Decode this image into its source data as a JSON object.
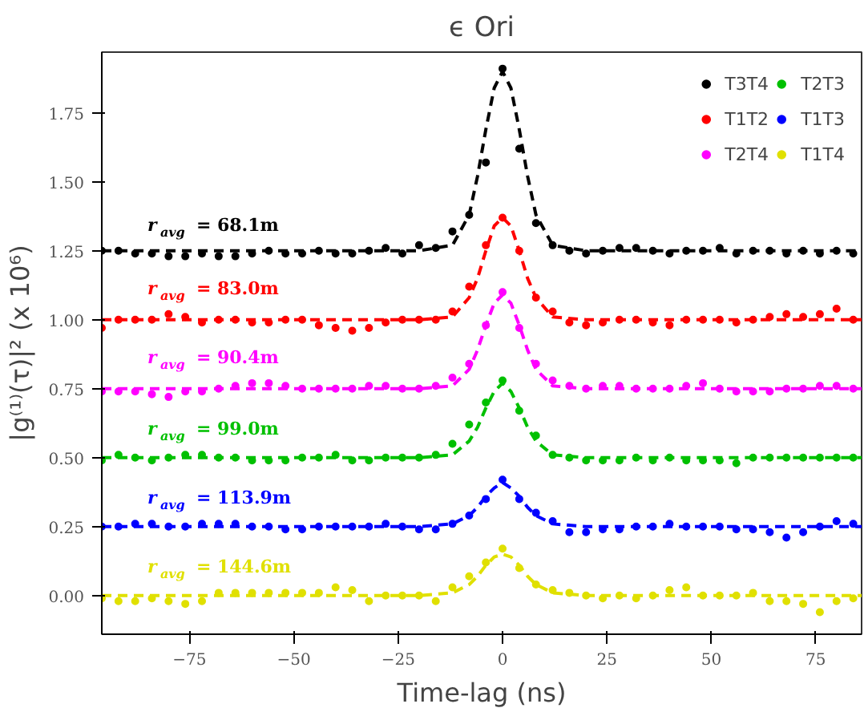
{
  "chart_data": {
    "type": "scatter",
    "title": "ϵ Ori",
    "xlabel": "Time-lag (ns)",
    "ylabel": "|g⁽¹⁾(τ)|² (x 10⁶)",
    "x": [
      -96,
      -92,
      -88,
      -84,
      -80,
      -76,
      -72,
      -68,
      -64,
      -60,
      -56,
      -52,
      -48,
      -44,
      -40,
      -36,
      -32,
      -28,
      -24,
      -20,
      -16,
      -12,
      -8,
      -4,
      0,
      4,
      8,
      12,
      16,
      20,
      24,
      28,
      32,
      36,
      40,
      44,
      48,
      52,
      56,
      60,
      64,
      68,
      72,
      76,
      80,
      84
    ],
    "series": [
      {
        "name": "T3T4",
        "color": "#000000",
        "values": [
          1.25,
          1.25,
          1.24,
          1.24,
          1.23,
          1.23,
          1.24,
          1.23,
          1.23,
          1.24,
          1.25,
          1.24,
          1.24,
          1.25,
          1.24,
          1.24,
          1.25,
          1.26,
          1.24,
          1.27,
          1.26,
          1.32,
          1.38,
          1.57,
          1.91,
          1.62,
          1.35,
          1.27,
          1.25,
          1.24,
          1.25,
          1.26,
          1.26,
          1.25,
          1.24,
          1.25,
          1.25,
          1.26,
          1.24,
          1.25,
          1.25,
          1.24,
          1.25,
          1.24,
          1.25,
          1.24
        ]
      },
      {
        "type": "line",
        "marker": "none",
        "color": "#000000",
        "line_style": "dashed",
        "x": [
          -96,
          -20,
          -12,
          -8,
          -6,
          -4,
          -2,
          0,
          2,
          4,
          6,
          8,
          12,
          20,
          86
        ],
        "values": [
          1.25,
          1.25,
          1.27,
          1.38,
          1.52,
          1.69,
          1.84,
          1.9,
          1.84,
          1.69,
          1.52,
          1.38,
          1.27,
          1.25,
          1.25
        ]
      },
      {
        "name": "T1T2",
        "color": "#ff0000",
        "values": [
          0.97,
          1.0,
          1.0,
          1.0,
          1.02,
          1.01,
          0.99,
          1.0,
          1.0,
          0.99,
          0.99,
          1.0,
          1.0,
          0.98,
          0.97,
          0.96,
          0.97,
          0.99,
          1.0,
          1.0,
          1.0,
          1.03,
          1.12,
          1.27,
          1.37,
          1.25,
          1.08,
          1.03,
          0.99,
          0.98,
          0.99,
          1.0,
          1.0,
          0.99,
          0.98,
          1.0,
          1.0,
          1.0,
          0.99,
          1.0,
          1.01,
          1.02,
          1.01,
          1.02,
          1.04,
          1.0
        ]
      },
      {
        "type": "line",
        "marker": "none",
        "color": "#ff0000",
        "line_style": "dashed",
        "x": [
          -96,
          -20,
          -12,
          -8,
          -6,
          -4,
          -2,
          0,
          2,
          4,
          6,
          8,
          12,
          20,
          86
        ],
        "values": [
          1.0,
          1.0,
          1.01,
          1.08,
          1.15,
          1.25,
          1.34,
          1.37,
          1.34,
          1.25,
          1.15,
          1.08,
          1.01,
          1.0,
          1.0
        ]
      },
      {
        "name": "T2T4",
        "color": "#ff00ff",
        "values": [
          0.74,
          0.74,
          0.74,
          0.73,
          0.72,
          0.74,
          0.74,
          0.75,
          0.76,
          0.77,
          0.77,
          0.76,
          0.75,
          0.75,
          0.75,
          0.75,
          0.76,
          0.76,
          0.75,
          0.75,
          0.76,
          0.79,
          0.84,
          0.98,
          1.1,
          0.97,
          0.84,
          0.78,
          0.76,
          0.75,
          0.76,
          0.76,
          0.75,
          0.75,
          0.75,
          0.76,
          0.77,
          0.75,
          0.74,
          0.74,
          0.74,
          0.75,
          0.75,
          0.76,
          0.76,
          0.75
        ]
      },
      {
        "type": "line",
        "marker": "none",
        "color": "#ff00ff",
        "line_style": "dashed",
        "x": [
          -96,
          -20,
          -12,
          -8,
          -6,
          -4,
          -2,
          0,
          2,
          4,
          6,
          8,
          12,
          20,
          86
        ],
        "values": [
          0.75,
          0.75,
          0.76,
          0.82,
          0.89,
          0.98,
          1.06,
          1.09,
          1.06,
          0.98,
          0.89,
          0.82,
          0.76,
          0.75,
          0.75
        ]
      },
      {
        "name": "T2T3",
        "color": "#00c000",
        "values": [
          0.49,
          0.51,
          0.5,
          0.49,
          0.5,
          0.51,
          0.51,
          0.5,
          0.5,
          0.49,
          0.49,
          0.49,
          0.5,
          0.5,
          0.51,
          0.49,
          0.49,
          0.5,
          0.5,
          0.5,
          0.51,
          0.55,
          0.62,
          0.7,
          0.78,
          0.67,
          0.58,
          0.51,
          0.5,
          0.49,
          0.49,
          0.49,
          0.5,
          0.49,
          0.5,
          0.49,
          0.49,
          0.49,
          0.48,
          0.5,
          0.5,
          0.5,
          0.5,
          0.5,
          0.5,
          0.5
        ]
      },
      {
        "type": "line",
        "marker": "none",
        "color": "#00c000",
        "line_style": "dashed",
        "x": [
          -96,
          -20,
          -12,
          -8,
          -6,
          -4,
          -2,
          0,
          2,
          4,
          6,
          8,
          12,
          20,
          86
        ],
        "values": [
          0.5,
          0.5,
          0.51,
          0.56,
          0.61,
          0.68,
          0.74,
          0.77,
          0.74,
          0.68,
          0.61,
          0.56,
          0.51,
          0.5,
          0.5
        ]
      },
      {
        "name": "T1T3",
        "color": "#0000ff",
        "values": [
          0.25,
          0.25,
          0.26,
          0.26,
          0.25,
          0.25,
          0.26,
          0.26,
          0.26,
          0.25,
          0.25,
          0.24,
          0.24,
          0.25,
          0.25,
          0.25,
          0.25,
          0.26,
          0.25,
          0.24,
          0.24,
          0.26,
          0.29,
          0.35,
          0.42,
          0.35,
          0.3,
          0.27,
          0.23,
          0.23,
          0.24,
          0.24,
          0.25,
          0.25,
          0.26,
          0.25,
          0.25,
          0.25,
          0.24,
          0.24,
          0.23,
          0.21,
          0.23,
          0.25,
          0.27,
          0.26
        ]
      },
      {
        "type": "line",
        "marker": "none",
        "color": "#0000ff",
        "line_style": "dashed",
        "x": [
          -96,
          -20,
          -12,
          -8,
          -6,
          -4,
          -2,
          0,
          2,
          4,
          6,
          8,
          12,
          20,
          86
        ],
        "values": [
          0.25,
          0.25,
          0.26,
          0.29,
          0.32,
          0.36,
          0.39,
          0.41,
          0.39,
          0.36,
          0.32,
          0.29,
          0.26,
          0.25,
          0.25
        ]
      },
      {
        "name": "T1T4",
        "color": "#e0e000",
        "values": [
          -0.01,
          -0.02,
          -0.02,
          -0.01,
          -0.02,
          -0.03,
          -0.02,
          0.01,
          0.01,
          0.01,
          0.01,
          0.01,
          0.01,
          0.01,
          0.03,
          0.02,
          -0.02,
          0.0,
          0.0,
          0.0,
          -0.02,
          0.03,
          0.07,
          0.12,
          0.17,
          0.1,
          0.04,
          0.02,
          0.01,
          0.0,
          -0.01,
          0.0,
          -0.01,
          0.0,
          0.02,
          0.03,
          0.0,
          0.0,
          0.0,
          0.01,
          -0.02,
          -0.02,
          -0.03,
          -0.06,
          -0.02,
          -0.01
        ]
      },
      {
        "type": "line",
        "marker": "none",
        "color": "#e0e000",
        "line_style": "dashed",
        "x": [
          -96,
          -20,
          -12,
          -8,
          -6,
          -4,
          -2,
          0,
          2,
          4,
          6,
          8,
          12,
          20,
          86
        ],
        "values": [
          0.0,
          0.0,
          0.01,
          0.04,
          0.07,
          0.11,
          0.14,
          0.15,
          0.14,
          0.11,
          0.07,
          0.04,
          0.01,
          0.0,
          0.0
        ]
      }
    ],
    "annotations": [
      "r$_{avg}$ = 68.1m",
      "r$_{avg}$ = 83.0m",
      "r$_{avg}$ = 90.4m",
      "r$_{avg}$ = 99.0m",
      "r$_{avg}$ = 113.9m",
      "r$_{avg}$ = 144.6m"
    ],
    "xlim": [
      -96,
      86
    ],
    "ylim": [
      -0.14,
      1.97
    ],
    "xticks": [
      {
        "value": -75,
        "label": "−75"
      },
      {
        "value": -50,
        "label": "−50"
      },
      {
        "value": -25,
        "label": "−25"
      },
      0,
      25,
      50,
      75
    ],
    "yticks": [
      {
        "value": 0,
        "label": "0.00"
      },
      {
        "value": 0.25,
        "label": "0.25"
      },
      {
        "value": 0.5,
        "label": "0.50"
      },
      {
        "value": 0.75,
        "label": "0.75"
      },
      {
        "value": 1.0,
        "label": "1.00"
      },
      {
        "value": 1.25,
        "label": "1.25"
      },
      {
        "value": 1.5,
        "label": "1.50"
      },
      {
        "value": 1.75,
        "label": "1.75"
      }
    ],
    "legend": "top right",
    "marker": "circle",
    "grid": false
  }
}
